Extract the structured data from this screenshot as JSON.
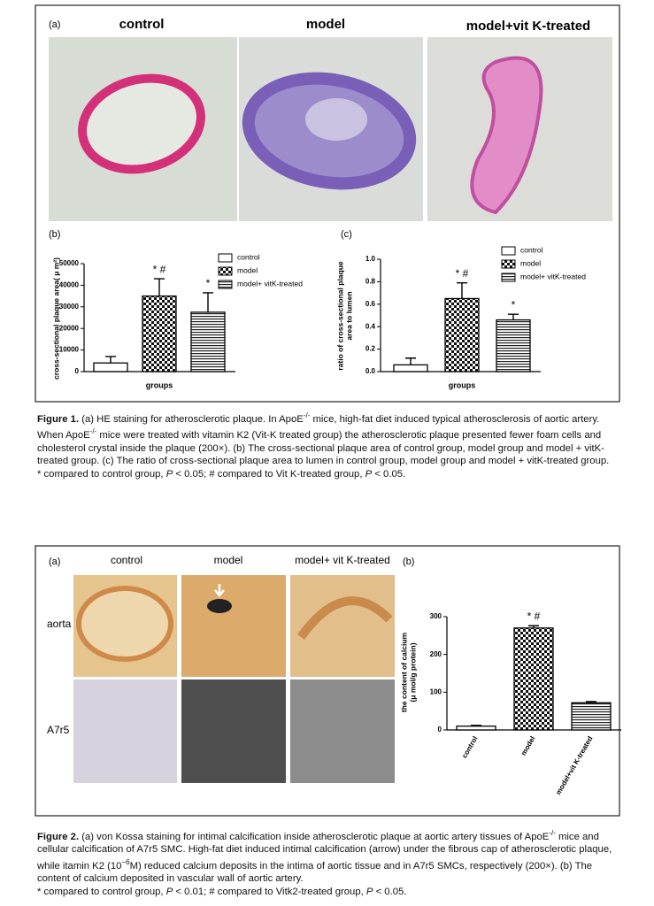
{
  "figure1": {
    "panel_a": {
      "label": "(a)",
      "titles": [
        "control",
        "model",
        "model+vit K-treated"
      ]
    },
    "caption": [
      [
        {
          "b": "Figure 1."
        },
        {
          "t": "  (a) HE staining for atherosclerotic plaque. In ApoE"
        },
        {
          "sup": "-/-"
        },
        {
          "t": " mice, high-fat diet induced typical atherosclerosis of aortic artery. When ApoE"
        },
        {
          "sup": "-/-"
        },
        {
          "t": " mice were treated with vitamin K2 (Vit-K treated group) the atherosclerotic plaque presented fewer foam cells and cholesterol crystal inside the plaque (200×). (b) The cross-sectional plaque area of control group, model group and model + vitK-treated group. (c) The ratio of cross-sectional plaque area to lumen in control group, model group and model + vitK-treated group."
        }
      ],
      [
        {
          "t": "* compared to control group, "
        },
        {
          "i": "P"
        },
        {
          "t": " < 0.05; # compared to Vit K-treated group, "
        },
        {
          "i": "P"
        },
        {
          "t": " < 0.05."
        }
      ]
    ]
  },
  "figure2": {
    "panel_a": {
      "label": "(a)",
      "columns": [
        "control",
        "model",
        "model+ vit K-treated"
      ],
      "rows": [
        "aorta",
        "A7r5"
      ]
    },
    "caption": [
      [
        {
          "b": "Figure 2."
        },
        {
          "t": "  (a) von Kossa staining for intimal calcification inside atherosclerotic plaque at aortic artery tissues of ApoE"
        },
        {
          "sup": "-/-"
        },
        {
          "t": " mice and cellular calcification of A7r5 SMC. High-fat diet induced intimal calcification (arrow) under the fibrous cap of atherosclerotic plaque, while itamin K2 (10"
        },
        {
          "sup": "−6"
        },
        {
          "t": "M) reduced calcium deposits in the intima of aortic tissue and in A7r5 SMCs, respectively (200×). (b) The content of calcium deposited in vascular wall of aortic artery."
        }
      ],
      [
        {
          "t": "* compared to control group, "
        },
        {
          "i": "P"
        },
        {
          "t": " < 0.01; # compared to Vitk2-treated group, "
        },
        {
          "i": "P"
        },
        {
          "t": " < 0.05."
        }
      ]
    ]
  },
  "chart_data": [
    {
      "type": "bar",
      "panel": "(b)",
      "categories": [
        "control",
        "model",
        "model+ vitK-treated"
      ],
      "values": [
        4000,
        35000,
        27500
      ],
      "errors": [
        3000,
        8000,
        9000
      ],
      "annotations": [
        null,
        "* #",
        "*"
      ],
      "fills": [
        "white",
        "checker",
        "hlines"
      ],
      "ylim": [
        0,
        50000
      ],
      "yticks": [
        0,
        10000,
        20000,
        30000,
        40000,
        50000
      ],
      "ylabel": [
        "cross-sectional plaque area( μ m²)"
      ],
      "xlabel": "groups",
      "legend": true,
      "show_categories": false
    },
    {
      "type": "bar",
      "panel": "(c)",
      "categories": [
        "control",
        "model",
        "model+ vitK-treated"
      ],
      "values": [
        0.06,
        0.65,
        0.46
      ],
      "errors": [
        0.06,
        0.14,
        0.05
      ],
      "annotations": [
        null,
        "* #",
        "*"
      ],
      "fills": [
        "white",
        "checker",
        "hlines"
      ],
      "ylim": [
        0,
        1
      ],
      "yticks": [
        {
          "value": 0,
          "label": "0.0"
        },
        0.2,
        0.4,
        0.6,
        0.8,
        {
          "value": 1,
          "label": "1.0"
        }
      ],
      "ylabel": [
        "ratio of cross-sectional plaque",
        "area to lumen"
      ],
      "xlabel": "groups",
      "legend": true,
      "show_categories": false
    },
    {
      "type": "bar",
      "panel": "(b)",
      "categories": [
        "control",
        "model",
        "model+vit K-treated"
      ],
      "values": [
        10,
        270,
        72
      ],
      "errors": [
        2,
        6,
        3
      ],
      "annotations": [
        null,
        "* #",
        null
      ],
      "fills": [
        "white",
        "checker",
        "hlines"
      ],
      "ylim": [
        0,
        300
      ],
      "yticks": [
        0,
        100,
        200,
        300
      ],
      "ylabel": [
        "the content of calcium",
        "(μ mol/g protein)"
      ],
      "legend": false,
      "show_categories": true
    }
  ]
}
